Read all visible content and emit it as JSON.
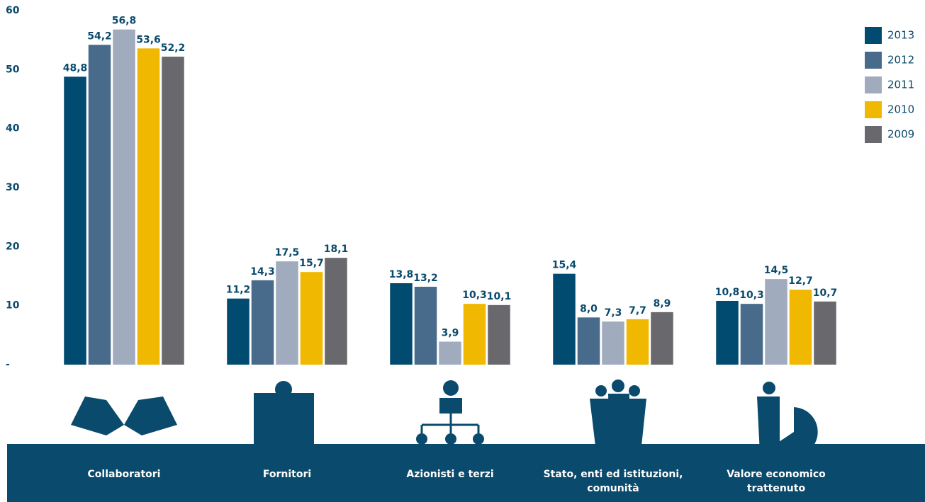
{
  "chart_data": {
    "type": "bar",
    "categories": [
      "Collaboratori",
      "Fornitori",
      "Azionisti e terzi",
      "Stato, enti ed istituzioni, comunità",
      "Valore economico trattenuto"
    ],
    "series": [
      {
        "name": "2013",
        "color": "#004b6f",
        "values": [
          48.8,
          11.2,
          13.8,
          15.4,
          10.8
        ],
        "value_labels": [
          "48,8",
          "11,2",
          "13,8",
          "15,4",
          "10,8"
        ]
      },
      {
        "name": "2012",
        "color": "#486a8b",
        "values": [
          54.2,
          14.3,
          13.2,
          8.0,
          10.3
        ],
        "value_labels": [
          "54,2",
          "14,3",
          "13,2",
          "8,0",
          "10,3"
        ]
      },
      {
        "name": "2011",
        "color": "#a1abbe",
        "values": [
          56.8,
          17.5,
          3.9,
          7.3,
          14.5
        ],
        "value_labels": [
          "56,8",
          "17,5",
          "3,9",
          "7,3",
          "14,5"
        ]
      },
      {
        "name": "2010",
        "color": "#f0b800",
        "values": [
          53.6,
          15.7,
          10.3,
          7.7,
          12.7
        ],
        "value_labels": [
          "53,6",
          "15,7",
          "10,3",
          "7,7",
          "12,7"
        ]
      },
      {
        "name": "2009",
        "color": "#68686d",
        "values": [
          52.2,
          18.1,
          10.1,
          8.9,
          10.7
        ],
        "value_labels": [
          "52,2",
          "18,1",
          "10,1",
          "8,9",
          "10,7"
        ]
      }
    ],
    "ylim": [
      0,
      60
    ],
    "yticks": [
      {
        "value": 0,
        "label": "-"
      },
      10,
      20,
      30,
      40,
      50,
      60
    ],
    "grid": false,
    "legend": "right"
  }
}
